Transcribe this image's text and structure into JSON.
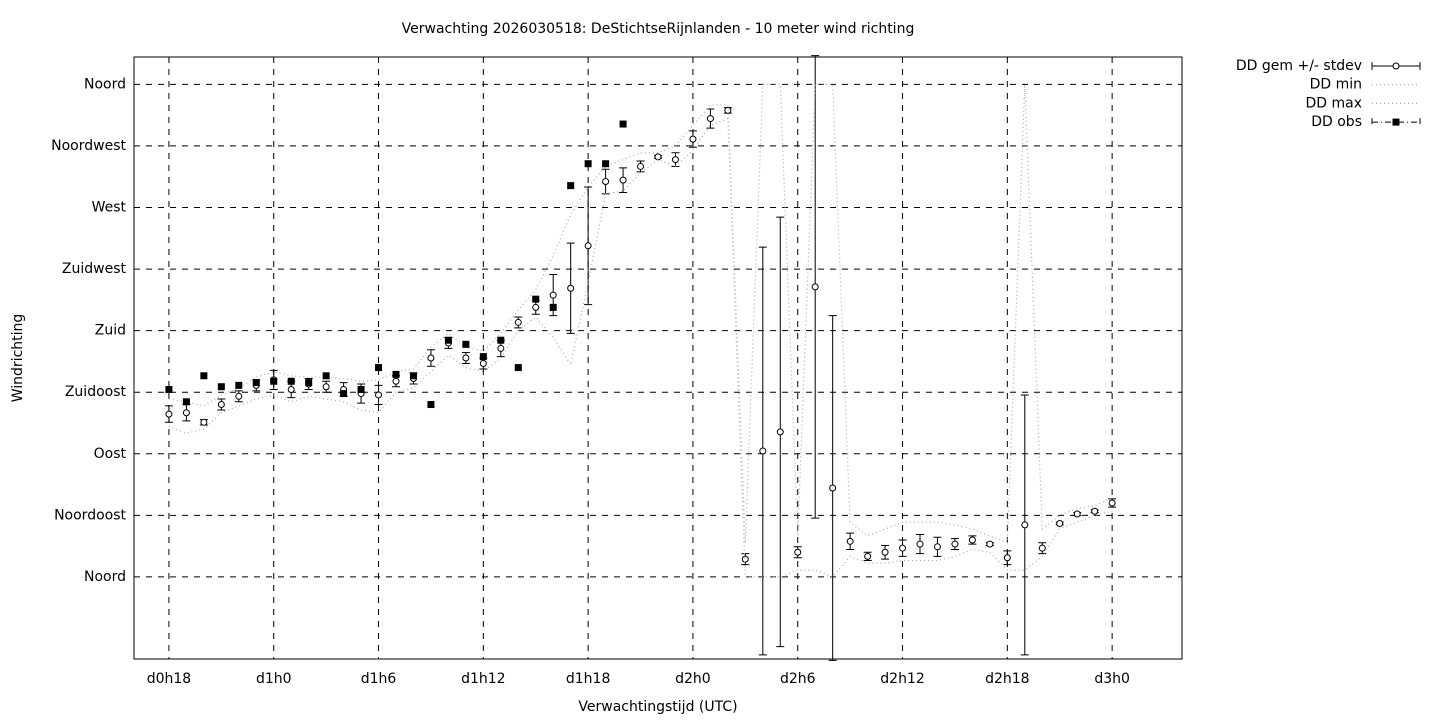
{
  "chart_data": {
    "type": "line",
    "title": "Verwachting 2026030518: DeStichtseRijnlanden - 10 meter wind richting",
    "x_label": "Verwachtingstijd (UTC)",
    "y_label": "Windrichting",
    "xlim": [
      16,
      76
    ],
    "ylim": [
      -60,
      380
    ],
    "xticks": [
      {
        "value": 18,
        "label": "d0h18"
      },
      {
        "value": 24,
        "label": "d1h0"
      },
      {
        "value": 30,
        "label": "d1h6"
      },
      {
        "value": 36,
        "label": "d1h12"
      },
      {
        "value": 42,
        "label": "d1h18"
      },
      {
        "value": 48,
        "label": "d2h0"
      },
      {
        "value": 54,
        "label": "d2h6"
      },
      {
        "value": 60,
        "label": "d2h12"
      },
      {
        "value": 66,
        "label": "d2h18"
      },
      {
        "value": 72,
        "label": "d3h0"
      }
    ],
    "yticks": [
      {
        "value": 0,
        "label": "Noord"
      },
      {
        "value": 45,
        "label": "Noordoost"
      },
      {
        "value": 90,
        "label": "Oost"
      },
      {
        "value": 135,
        "label": "Zuidoost"
      },
      {
        "value": 180,
        "label": "Zuid"
      },
      {
        "value": 225,
        "label": "Zuidwest"
      },
      {
        "value": 270,
        "label": "West"
      },
      {
        "value": 315,
        "label": "Noordwest"
      },
      {
        "value": 360,
        "label": "Noord"
      }
    ],
    "grid": true,
    "legend": "outside-right",
    "x": [
      18,
      19,
      20,
      21,
      22,
      23,
      24,
      25,
      26,
      27,
      28,
      29,
      30,
      31,
      32,
      33,
      34,
      35,
      36,
      37,
      38,
      39,
      40,
      41,
      42,
      43,
      44,
      45,
      46,
      47,
      48,
      49,
      50,
      51,
      52,
      53,
      54,
      55,
      56,
      57,
      58,
      59,
      60,
      61,
      62,
      63,
      64,
      65,
      66,
      67,
      68,
      69,
      70,
      71,
      72
    ],
    "series": [
      {
        "name": "DD gem +/- stdev",
        "color": "#000000",
        "style": "errorbars",
        "values": [
          119,
          120,
          113,
          126,
          132,
          140,
          144,
          137,
          141,
          139,
          137,
          134,
          133,
          143,
          145,
          160,
          171,
          160,
          156,
          167,
          186,
          197,
          206,
          211,
          242,
          289,
          290,
          300,
          307,
          305,
          320,
          335,
          341,
          13,
          92,
          106,
          18,
          212,
          65,
          26,
          15,
          18,
          21,
          24,
          22,
          24,
          27,
          24,
          14,
          38,
          21,
          39,
          46,
          48,
          54
        ],
        "errors": [
          6,
          6,
          2,
          4,
          4,
          4,
          7,
          6,
          4,
          4,
          5,
          7,
          7,
          4,
          4,
          6,
          4,
          4,
          4,
          6,
          4,
          5,
          15,
          33,
          43,
          9,
          9,
          4,
          1,
          5,
          6,
          7,
          2,
          4,
          149,
          157,
          4,
          169,
          126,
          6,
          3,
          5,
          6,
          7,
          7,
          4,
          3,
          1,
          5,
          95,
          4,
          1,
          1,
          1,
          3
        ]
      },
      {
        "name": "DD min",
        "color": "#aaaaaa",
        "style": "dotted",
        "values": [
          110,
          105,
          108,
          120,
          125,
          130,
          133,
          128,
          132,
          130,
          128,
          122,
          120,
          135,
          138,
          150,
          162,
          153,
          150,
          160,
          180,
          190,
          175,
          155,
          215,
          280,
          282,
          295,
          305,
          300,
          312,
          330,
          335,
          0,
          0,
          0,
          5,
          5,
          0,
          15,
          10,
          10,
          12,
          12,
          12,
          15,
          20,
          18,
          5,
          5,
          15,
          35,
          40,
          45,
          48
        ]
      },
      {
        "name": "DD max",
        "color": "#aaaaaa",
        "style": "dotted",
        "values": [
          130,
          128,
          125,
          133,
          138,
          146,
          150,
          147,
          146,
          146,
          145,
          143,
          144,
          150,
          152,
          168,
          178,
          168,
          165,
          178,
          195,
          210,
          235,
          265,
          285,
          300,
          305,
          310,
          310,
          315,
          330,
          345,
          345,
          25,
          360,
          360,
          30,
          360,
          360,
          40,
          30,
          35,
          40,
          40,
          40,
          38,
          35,
          30,
          25,
          360,
          35,
          45,
          50,
          52,
          58
        ]
      },
      {
        "name": "DD obs",
        "color": "#000000",
        "style": "squares",
        "values": [
          137,
          128,
          147,
          139,
          140,
          142,
          143,
          143,
          142,
          147,
          134,
          137,
          153,
          148,
          147,
          126,
          173,
          170,
          161,
          173,
          153,
          203,
          197,
          286,
          302,
          302,
          331,
          null,
          null,
          null,
          null,
          null,
          null,
          null,
          null,
          null,
          null,
          null,
          null,
          null,
          null,
          null,
          null,
          null,
          null,
          null,
          null,
          null,
          null,
          null,
          null,
          null,
          null,
          null,
          null
        ]
      }
    ]
  }
}
